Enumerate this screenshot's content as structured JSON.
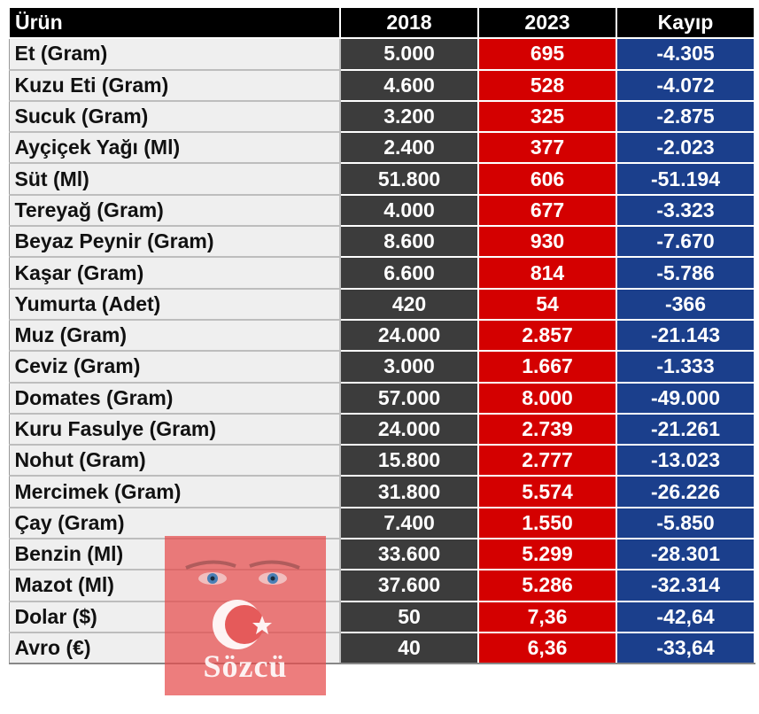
{
  "table": {
    "headers": [
      "Ürün",
      "2018",
      "2023",
      "Kayıp"
    ],
    "rows": [
      {
        "name": "Et (Gram)",
        "y2018": "5.000",
        "y2023": "695",
        "loss": "-4.305"
      },
      {
        "name": "Kuzu Eti (Gram)",
        "y2018": "4.600",
        "y2023": "528",
        "loss": "-4.072"
      },
      {
        "name": "Sucuk (Gram)",
        "y2018": "3.200",
        "y2023": "325",
        "loss": "-2.875"
      },
      {
        "name": "Ayçiçek Yağı (Ml)",
        "y2018": "2.400",
        "y2023": "377",
        "loss": "-2.023"
      },
      {
        "name": "Süt (Ml)",
        "y2018": "51.800",
        "y2023": "606",
        "loss": "-51.194"
      },
      {
        "name": "Tereyağ (Gram)",
        "y2018": "4.000",
        "y2023": "677",
        "loss": "-3.323"
      },
      {
        "name": "Beyaz Peynir (Gram)",
        "y2018": "8.600",
        "y2023": "930",
        "loss": "-7.670"
      },
      {
        "name": "Kaşar (Gram)",
        "y2018": "6.600",
        "y2023": "814",
        "loss": "-5.786"
      },
      {
        "name": "Yumurta (Adet)",
        "y2018": "420",
        "y2023": "54",
        "loss": "-366"
      },
      {
        "name": "Muz (Gram)",
        "y2018": "24.000",
        "y2023": "2.857",
        "loss": "-21.143"
      },
      {
        "name": "Ceviz (Gram)",
        "y2018": "3.000",
        "y2023": "1.667",
        "loss": "-1.333"
      },
      {
        "name": "Domates (Gram)",
        "y2018": "57.000",
        "y2023": "8.000",
        "loss": "-49.000"
      },
      {
        "name": "Kuru Fasulye (Gram)",
        "y2018": "24.000",
        "y2023": "2.739",
        "loss": "-21.261"
      },
      {
        "name": "Nohut (Gram)",
        "y2018": "15.800",
        "y2023": "2.777",
        "loss": "-13.023"
      },
      {
        "name": "Mercimek (Gram)",
        "y2018": "31.800",
        "y2023": "5.574",
        "loss": "-26.226"
      },
      {
        "name": "Çay (Gram)",
        "y2018": "7.400",
        "y2023": "1.550",
        "loss": "-5.850"
      },
      {
        "name": "Benzin (Ml)",
        "y2018": "33.600",
        "y2023": "5.299",
        "loss": "-28.301"
      },
      {
        "name": "Mazot (Ml)",
        "y2018": "37.600",
        "y2023": "5.286",
        "loss": "-32.314"
      },
      {
        "name": "Dolar ($)",
        "y2018": "50",
        "y2023": "7,36",
        "loss": "-42,64"
      },
      {
        "name": "Avro (€)",
        "y2018": "40",
        "y2023": "6,36",
        "loss": "-33,64"
      }
    ]
  },
  "colors": {
    "header_bg": "#000000",
    "name_bg": "#efefef",
    "col_2018_bg": "#3c3c3c",
    "col_2023_bg": "#d40000",
    "col_loss_bg": "#1b3f8c"
  },
  "watermark": {
    "text": "Sözcü",
    "icons": [
      "eyes-portrait-icon",
      "crescent-star-icon"
    ]
  }
}
